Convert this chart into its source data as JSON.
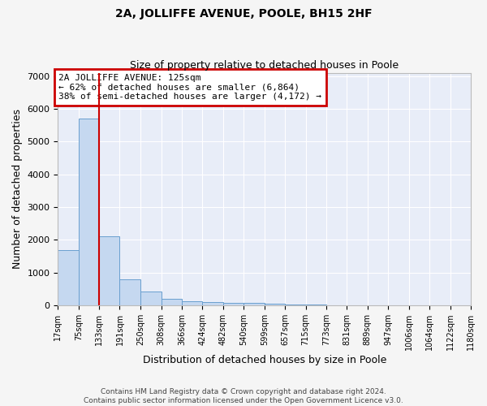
{
  "title": "2A, JOLLIFFE AVENUE, POOLE, BH15 2HF",
  "subtitle": "Size of property relative to detached houses in Poole",
  "xlabel": "Distribution of detached houses by size in Poole",
  "ylabel": "Number of detached properties",
  "footer_line1": "Contains HM Land Registry data © Crown copyright and database right 2024.",
  "footer_line2": "Contains public sector information licensed under the Open Government Licence v3.0.",
  "bar_edges": [
    17,
    75,
    133,
    191,
    250,
    308,
    366,
    424,
    482,
    540,
    599,
    657,
    715,
    773,
    831,
    889,
    947,
    1006,
    1064,
    1122,
    1180
  ],
  "bar_heights": [
    1700,
    5700,
    2100,
    800,
    430,
    200,
    120,
    110,
    75,
    75,
    50,
    30,
    20,
    10,
    8,
    5,
    3,
    2,
    1,
    1
  ],
  "bar_color": "#c5d8f0",
  "bar_edgecolor": "#6a9fcf",
  "red_line_x": 133,
  "annotation_title": "2A JOLLIFFE AVENUE: 125sqm",
  "annotation_line1": "← 62% of detached houses are smaller (6,864)",
  "annotation_line2": "38% of semi-detached houses are larger (4,172) →",
  "annotation_box_color": "#cc0000",
  "ylim": [
    0,
    7100
  ],
  "yticks": [
    0,
    1000,
    2000,
    3000,
    4000,
    5000,
    6000,
    7000
  ],
  "background_color": "#e8edf8",
  "grid_color": "#ffffff",
  "fig_facecolor": "#f5f5f5"
}
